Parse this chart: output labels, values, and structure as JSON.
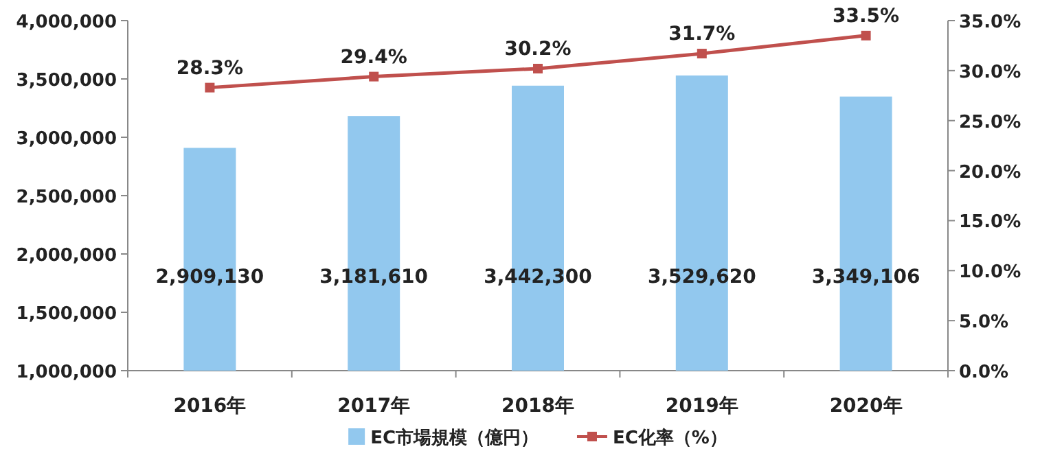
{
  "chart_data": {
    "type": "bar",
    "categories": [
      "2016年",
      "2017年",
      "2018年",
      "2019年",
      "2020年"
    ],
    "series": [
      {
        "name": "EC市場規模（億円）",
        "color": "#92c8ee",
        "values": [
          2909130,
          3181610,
          3442300,
          3529620,
          3349106
        ],
        "value_labels": [
          "2,909,130",
          "3,181,610",
          "3,442,300",
          "3,529,620",
          "3,349,106"
        ]
      },
      {
        "type": "line",
        "axis": "y2",
        "marker": "square",
        "name": "EC化率（%）",
        "color": "#c0504d",
        "values": [
          28.3,
          29.4,
          30.2,
          31.7,
          33.5
        ],
        "value_labels": [
          "28.3%",
          "29.4%",
          "30.2%",
          "31.7%",
          "33.5%"
        ]
      }
    ],
    "ylim": [
      1000000,
      4000000
    ],
    "yticks": [
      {
        "value": 1000000,
        "label": "1,000,000"
      },
      {
        "value": 1500000,
        "label": "1,500,000"
      },
      {
        "value": 2000000,
        "label": "2,000,000"
      },
      {
        "value": 2500000,
        "label": "2,500,000"
      },
      {
        "value": 3000000,
        "label": "3,000,000"
      },
      {
        "value": 3500000,
        "label": "3,500,000"
      },
      {
        "value": 4000000,
        "label": "4,000,000"
      }
    ],
    "y2lim": [
      0,
      35
    ],
    "y2ticks": [
      {
        "value": 0,
        "label": "0.0%"
      },
      {
        "value": 5,
        "label": "5.0%"
      },
      {
        "value": 10,
        "label": "10.0%"
      },
      {
        "value": 15,
        "label": "15.0%"
      },
      {
        "value": 20,
        "label": "20.0%"
      },
      {
        "value": 25,
        "label": "25.0%"
      },
      {
        "value": 30,
        "label": "30.0%"
      },
      {
        "value": 35,
        "label": "35.0%"
      }
    ],
    "legend": "bottom"
  }
}
